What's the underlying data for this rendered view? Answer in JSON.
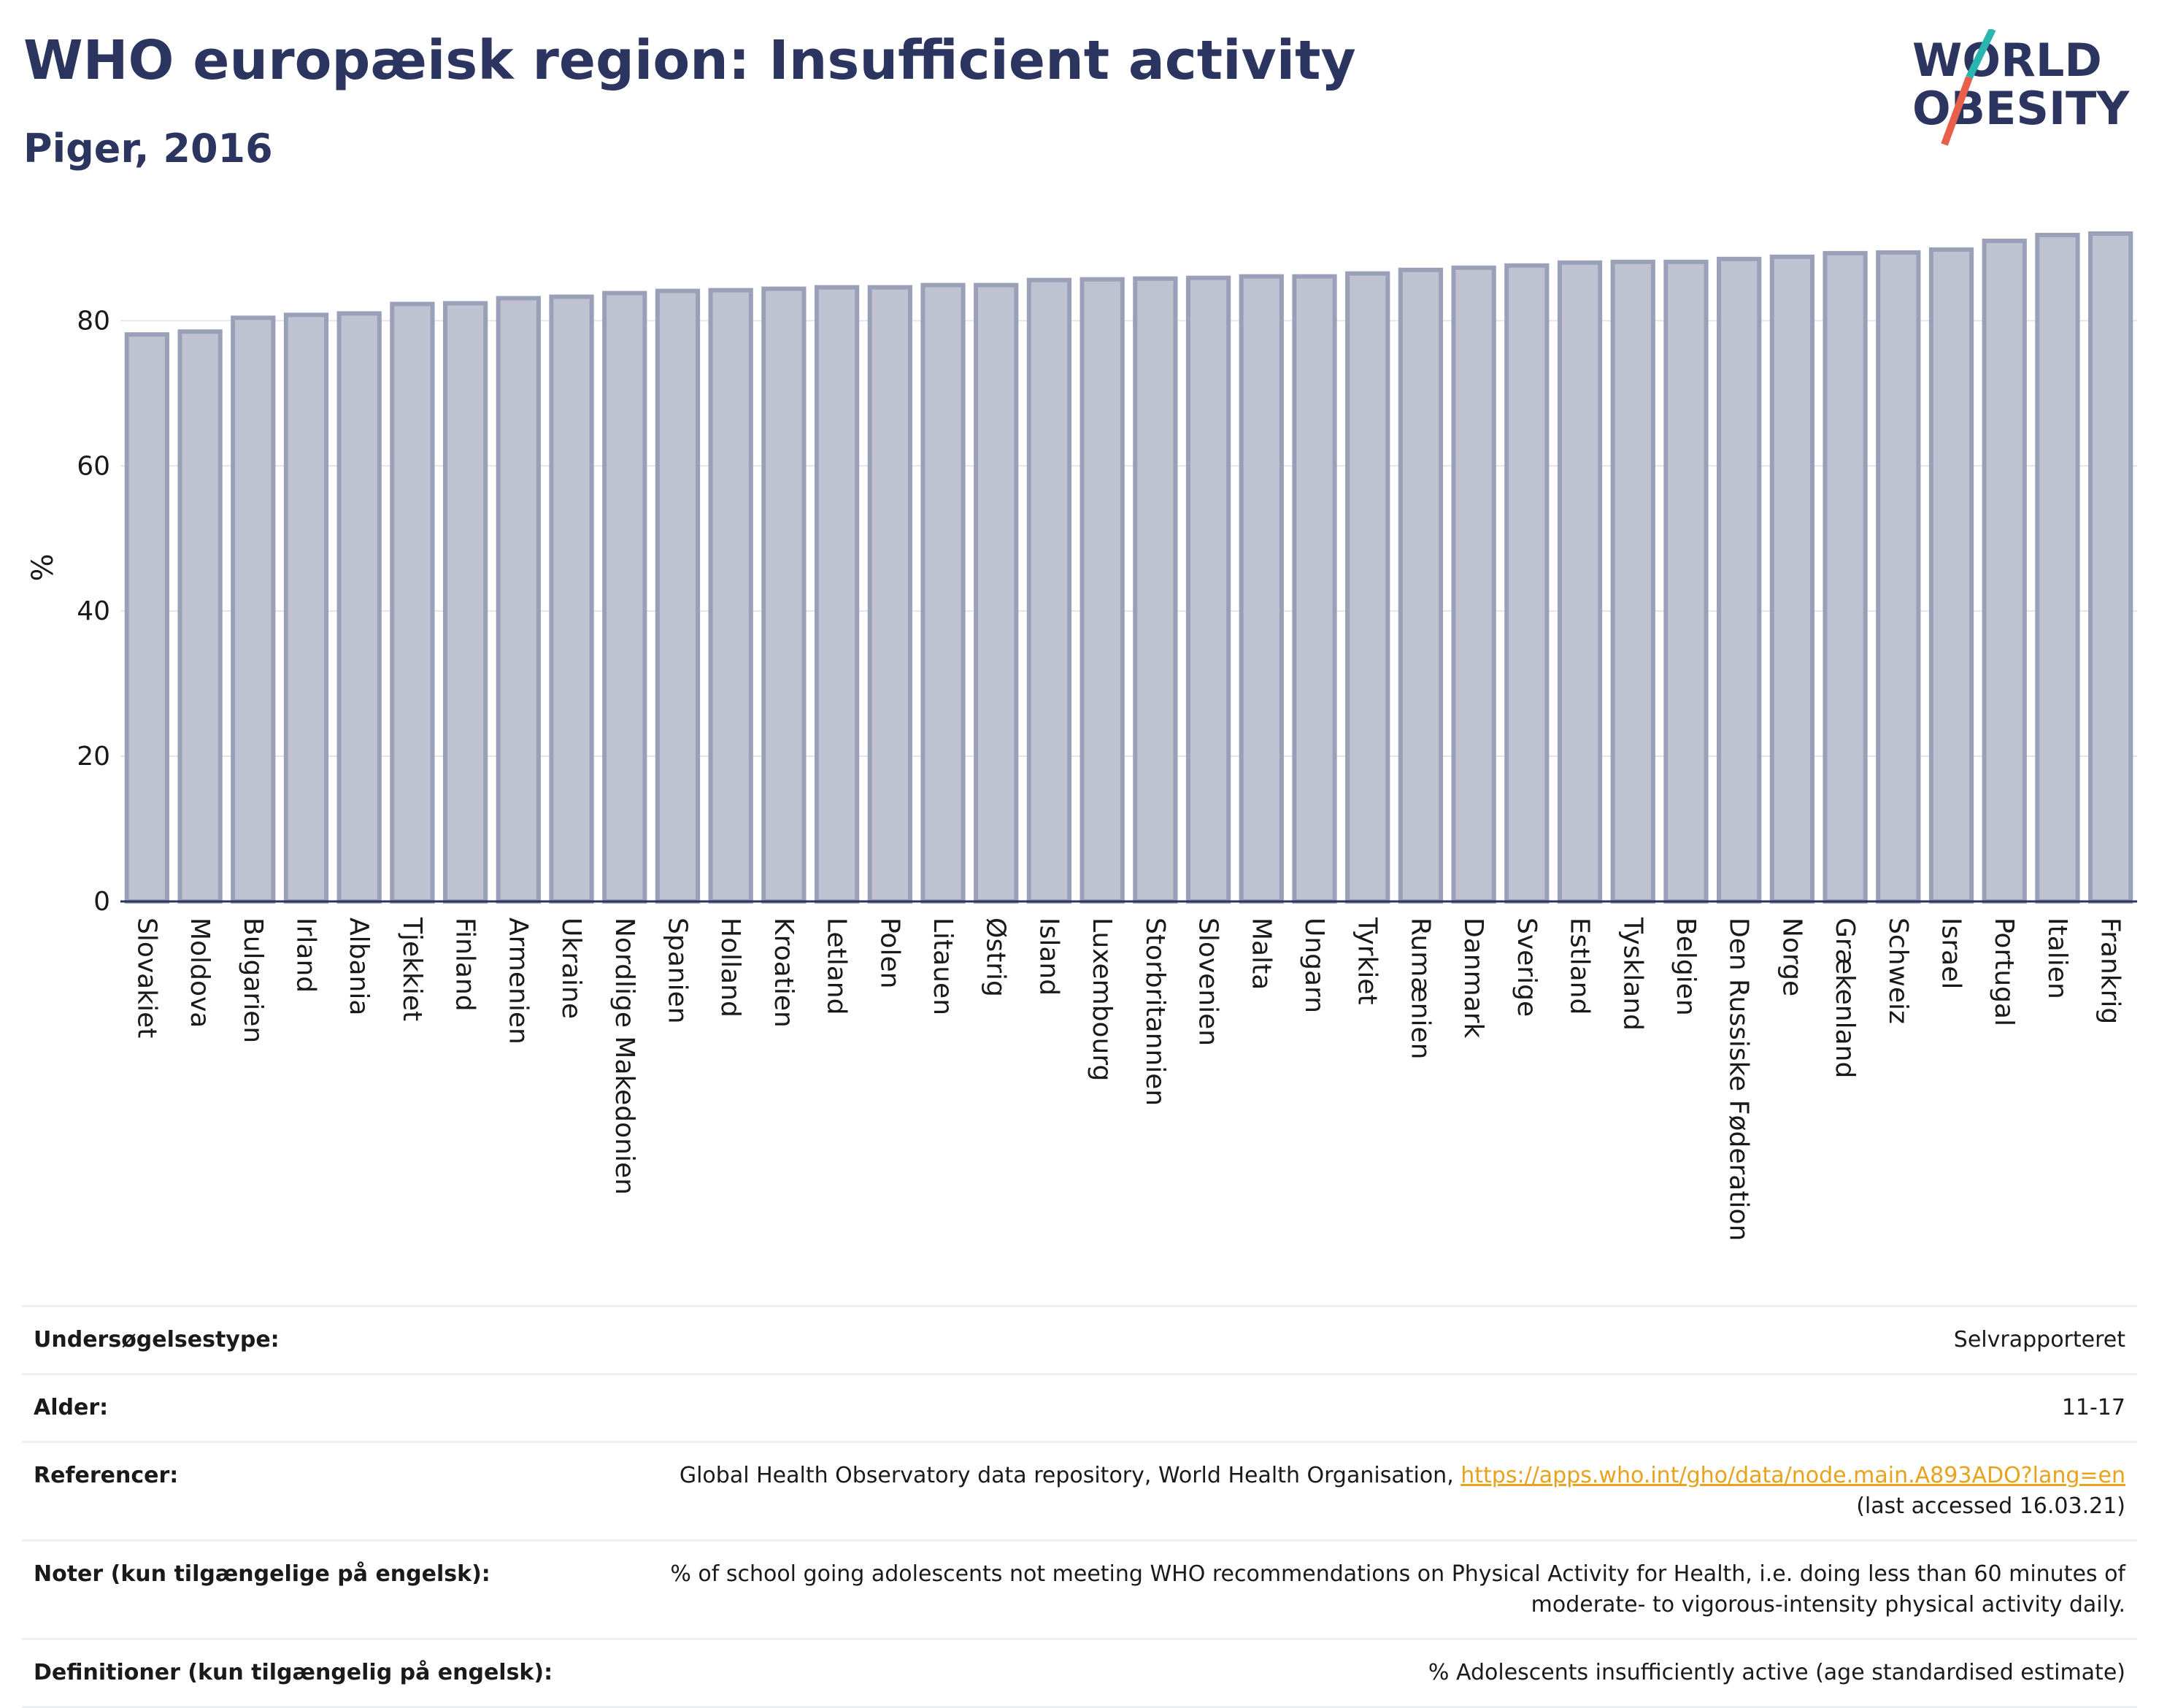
{
  "header": {
    "title": "WHO europæisk region: Insufficient activity",
    "subtitle": "Piger, 2016"
  },
  "logo": {
    "line1": "WORLD",
    "line2": "OBESITY",
    "slash_colors": [
      "#2bb5b0",
      "#e8604c"
    ]
  },
  "chart_data": {
    "type": "bar",
    "ylabel": "%",
    "ylim": [
      0,
      92
    ],
    "yticks": [
      0,
      20,
      40,
      60,
      80
    ],
    "grid": true,
    "bar_color": "#bfc3d1",
    "bar_edge_color": "#9aa0b8",
    "categories": [
      "Slovakiet",
      "Moldova",
      "Bulgarien",
      "Irland",
      "Albania",
      "Tjekkiet",
      "Finland",
      "Armenien",
      "Ukraine",
      "Nordlige Makedonien",
      "Spanien",
      "Holland",
      "Kroatien",
      "Letland",
      "Polen",
      "Litauen",
      "Østrig",
      "Island",
      "Luxembourg",
      "Storbritannien",
      "Slovenien",
      "Malta",
      "Ungarn",
      "Tyrkiet",
      "Rumænien",
      "Danmark",
      "Sverige",
      "Estland",
      "Tyskland",
      "Belgien",
      "Den Russiske Føderation",
      "Norge",
      "Grækenland",
      "Schweiz",
      "Israel",
      "Portugal",
      "Italien",
      "Frankrig"
    ],
    "values": [
      78.1,
      78.5,
      80.4,
      80.8,
      81.0,
      82.3,
      82.4,
      83.1,
      83.3,
      83.8,
      84.1,
      84.2,
      84.4,
      84.6,
      84.6,
      84.9,
      84.9,
      85.6,
      85.7,
      85.8,
      85.9,
      86.1,
      86.1,
      86.5,
      87.0,
      87.3,
      87.6,
      88.0,
      88.1,
      88.1,
      88.5,
      88.8,
      89.3,
      89.4,
      89.8,
      91.0,
      91.8,
      92.0
    ]
  },
  "info": {
    "rows": [
      {
        "key": "Undersøgelsestype:",
        "value": "Selvrapporteret"
      },
      {
        "key": "Alder:",
        "value": "11-17"
      },
      {
        "key": "Referencer:",
        "value": "Global Health Observatory data repository, World Health Organisation, ",
        "link": "https://apps.who.int/gho/data/node.main.A893ADO?lang=en",
        "value2": "(last accessed 16.03.21)"
      },
      {
        "key": "Noter (kun tilgængelige på engelsk):",
        "value": "% of school going adolescents not meeting WHO recommendations on Physical Activity for Health, i.e. doing less than 60 minutes of moderate- to vigorous-intensity physical activity daily."
      },
      {
        "key": "Definitioner (kun tilgængelig på engelsk):",
        "value": "% Adolescents insufficiently active (age standardised estimate)"
      }
    ]
  }
}
